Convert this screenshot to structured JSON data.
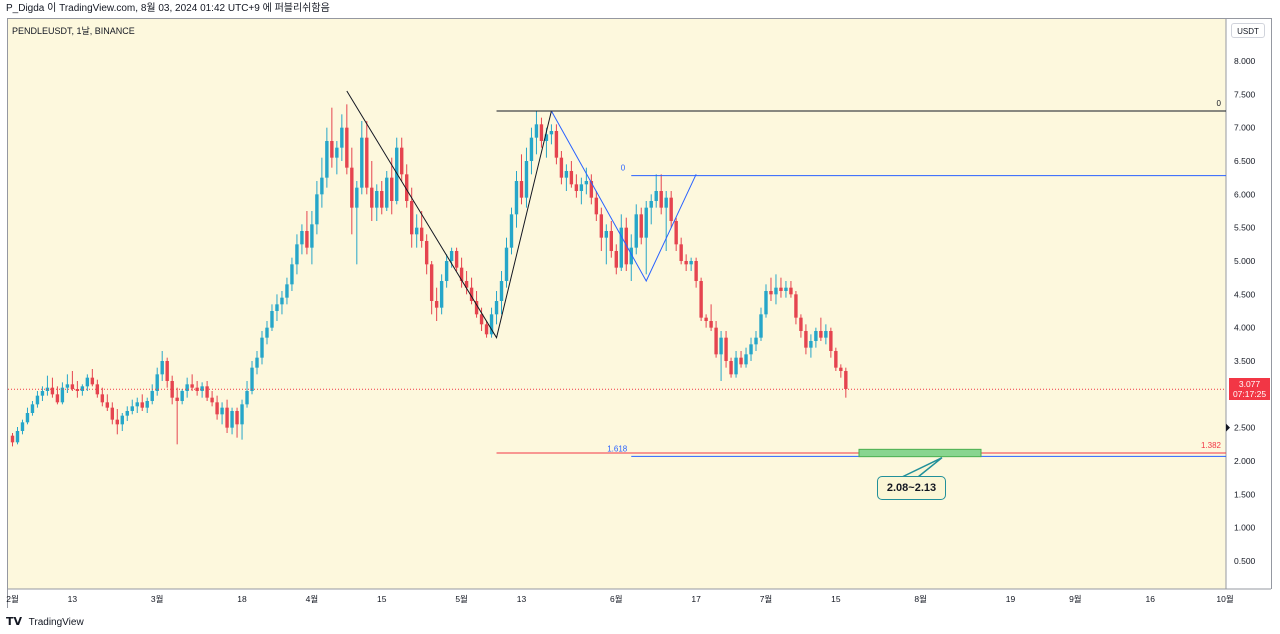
{
  "header": {
    "text": "P_Digda 이 TradingView.com, 8월 03, 2024 01:42 UTC+9 에 퍼블리쉬함음"
  },
  "chart_meta": {
    "symbol_label": "PENDLEUSDT, 1날, BINANCE",
    "currency": "USDT"
  },
  "footer": {
    "logo_text": "𝗧𝗩",
    "brand": "TradingView"
  },
  "colors": {
    "background": "#fdf8dd",
    "up": "#26a6c9",
    "down": "#e5444f",
    "accent_red": "#f23645",
    "blue_line": "#2962ff",
    "teal": "#22909a",
    "zone": "#89d58f"
  },
  "chart_data": {
    "type": "candlestick",
    "title": "PENDLEUSDT, 1날, BINANCE",
    "ylabel": "USDT",
    "ylim": [
      0.08,
      8.63
    ],
    "y_ticks": [
      0.5,
      1.0,
      1.5,
      2.0,
      2.5,
      3.0,
      3.5,
      4.0,
      4.5,
      5.0,
      5.5,
      6.0,
      6.5,
      7.0,
      7.5,
      8.0
    ],
    "y_tick_labels": [
      "0.500",
      "1.000",
      "1.500",
      "2.000",
      "2.500",
      "",
      "3.500",
      "4.000",
      "4.500",
      "5.000",
      "5.500",
      "6.000",
      "6.500",
      "7.000",
      "7.500",
      "8.000"
    ],
    "x_ticks": [
      {
        "label": "2월",
        "day": 0
      },
      {
        "label": "13",
        "day": 12
      },
      {
        "label": "3월",
        "day": 29
      },
      {
        "label": "18",
        "day": 46
      },
      {
        "label": "4월",
        "day": 60
      },
      {
        "label": "15",
        "day": 74
      },
      {
        "label": "5월",
        "day": 90
      },
      {
        "label": "13",
        "day": 102
      },
      {
        "label": "6월",
        "day": 121
      },
      {
        "label": "17",
        "day": 137
      },
      {
        "label": "7월",
        "day": 151
      },
      {
        "label": "15",
        "day": 165
      },
      {
        "label": "8월",
        "day": 182
      },
      {
        "label": "19",
        "day": 200
      },
      {
        "label": "9월",
        "day": 213
      },
      {
        "label": "16",
        "day": 228
      },
      {
        "label": "10월",
        "day": 243
      }
    ],
    "current_price": 3.077,
    "current_price_label": "3.077",
    "countdown": "07:17:25",
    "series": [
      {
        "name": "PENDLEUSDT",
        "data": [
          [
            2.38,
            2.42,
            2.22,
            2.28
          ],
          [
            2.28,
            2.51,
            2.25,
            2.45
          ],
          [
            2.45,
            2.62,
            2.4,
            2.58
          ],
          [
            2.58,
            2.8,
            2.55,
            2.72
          ],
          [
            2.72,
            2.9,
            2.68,
            2.85
          ],
          [
            2.85,
            3.05,
            2.8,
            2.98
          ],
          [
            2.98,
            3.12,
            2.9,
            3.05
          ],
          [
            3.05,
            3.28,
            2.98,
            3.1
          ],
          [
            3.1,
            3.25,
            2.95,
            3.0
          ],
          [
            3.0,
            3.12,
            2.85,
            2.88
          ],
          [
            2.88,
            3.18,
            2.85,
            3.1
          ],
          [
            3.1,
            3.3,
            3.02,
            3.15
          ],
          [
            3.15,
            3.35,
            3.05,
            3.08
          ],
          [
            3.08,
            3.2,
            2.95,
            3.05
          ],
          [
            3.05,
            3.15,
            2.98,
            3.12
          ],
          [
            3.12,
            3.3,
            3.05,
            3.25
          ],
          [
            3.25,
            3.38,
            3.12,
            3.15
          ],
          [
            3.15,
            3.22,
            2.95,
            3.0
          ],
          [
            3.0,
            3.1,
            2.82,
            2.88
          ],
          [
            2.88,
            3.0,
            2.75,
            2.8
          ],
          [
            2.8,
            2.88,
            2.55,
            2.62
          ],
          [
            2.62,
            2.78,
            2.4,
            2.55
          ],
          [
            2.55,
            2.72,
            2.45,
            2.68
          ],
          [
            2.68,
            2.82,
            2.6,
            2.75
          ],
          [
            2.75,
            2.92,
            2.7,
            2.82
          ],
          [
            2.82,
            2.95,
            2.72,
            2.88
          ],
          [
            2.88,
            3.0,
            2.75,
            2.8
          ],
          [
            2.8,
            2.95,
            2.72,
            2.9
          ],
          [
            2.9,
            3.15,
            2.85,
            3.05
          ],
          [
            3.05,
            3.4,
            2.98,
            3.3
          ],
          [
            3.3,
            3.65,
            3.2,
            3.5
          ],
          [
            3.5,
            3.55,
            3.1,
            3.2
          ],
          [
            3.2,
            3.28,
            2.85,
            2.95
          ],
          [
            2.95,
            3.1,
            2.25,
            2.9
          ],
          [
            2.9,
            3.08,
            2.85,
            3.05
          ],
          [
            3.05,
            3.25,
            2.95,
            3.15
          ],
          [
            3.15,
            3.3,
            3.05,
            3.1
          ],
          [
            3.1,
            3.2,
            2.98,
            3.05
          ],
          [
            3.05,
            3.18,
            2.95,
            3.12
          ],
          [
            3.12,
            3.2,
            2.9,
            2.95
          ],
          [
            2.95,
            3.05,
            2.82,
            2.88
          ],
          [
            2.88,
            2.98,
            2.62,
            2.7
          ],
          [
            2.7,
            2.88,
            2.55,
            2.8
          ],
          [
            2.8,
            2.92,
            2.42,
            2.5
          ],
          [
            2.5,
            2.8,
            2.4,
            2.75
          ],
          [
            2.75,
            2.8,
            2.35,
            2.55
          ],
          [
            2.55,
            2.92,
            2.32,
            2.85
          ],
          [
            2.85,
            3.2,
            2.8,
            3.05
          ],
          [
            3.05,
            3.5,
            3.0,
            3.4
          ],
          [
            3.4,
            3.65,
            3.3,
            3.55
          ],
          [
            3.55,
            3.95,
            3.45,
            3.85
          ],
          [
            3.85,
            4.1,
            3.75,
            4.0
          ],
          [
            4.0,
            4.35,
            3.95,
            4.25
          ],
          [
            4.25,
            4.5,
            4.1,
            4.35
          ],
          [
            4.35,
            4.55,
            4.2,
            4.45
          ],
          [
            4.45,
            4.75,
            4.35,
            4.65
          ],
          [
            4.65,
            5.05,
            4.55,
            4.95
          ],
          [
            4.95,
            5.4,
            4.8,
            5.25
          ],
          [
            5.25,
            5.55,
            5.1,
            5.45
          ],
          [
            5.45,
            5.75,
            5.1,
            5.2
          ],
          [
            5.2,
            5.75,
            4.95,
            5.55
          ],
          [
            5.55,
            6.2,
            5.4,
            6.0
          ],
          [
            6.0,
            6.55,
            5.8,
            6.25
          ],
          [
            6.25,
            7.0,
            6.1,
            6.8
          ],
          [
            6.8,
            7.3,
            6.4,
            6.55
          ],
          [
            6.55,
            6.8,
            6.3,
            6.7
          ],
          [
            6.7,
            7.2,
            6.5,
            7.0
          ],
          [
            7.0,
            7.35,
            6.3,
            6.4
          ],
          [
            6.4,
            6.7,
            5.4,
            5.8
          ],
          [
            5.8,
            6.2,
            4.95,
            6.1
          ],
          [
            6.1,
            7.1,
            6.0,
            6.85
          ],
          [
            6.85,
            7.1,
            6.0,
            6.1
          ],
          [
            6.1,
            6.5,
            5.6,
            5.8
          ],
          [
            5.8,
            6.15,
            5.6,
            6.05
          ],
          [
            6.05,
            6.2,
            5.7,
            5.8
          ],
          [
            5.8,
            6.35,
            5.75,
            6.25
          ],
          [
            6.25,
            6.55,
            5.7,
            5.9
          ],
          [
            5.9,
            6.85,
            5.85,
            6.7
          ],
          [
            6.7,
            6.85,
            6.2,
            6.3
          ],
          [
            6.3,
            6.45,
            5.8,
            5.9
          ],
          [
            5.9,
            6.1,
            5.2,
            5.4
          ],
          [
            5.4,
            5.7,
            5.2,
            5.5
          ],
          [
            5.5,
            5.75,
            5.2,
            5.3
          ],
          [
            5.3,
            5.4,
            4.8,
            4.95
          ],
          [
            4.95,
            5.0,
            4.2,
            4.4
          ],
          [
            4.4,
            4.6,
            4.1,
            4.3
          ],
          [
            4.3,
            4.8,
            4.2,
            4.7
          ],
          [
            4.7,
            5.1,
            4.6,
            5.0
          ],
          [
            5.0,
            5.2,
            4.9,
            5.15
          ],
          [
            5.15,
            5.2,
            4.85,
            4.9
          ],
          [
            4.9,
            5.05,
            4.6,
            4.7
          ],
          [
            4.7,
            4.85,
            4.5,
            4.6
          ],
          [
            4.6,
            4.75,
            4.35,
            4.4
          ],
          [
            4.4,
            4.55,
            4.15,
            4.2
          ],
          [
            4.2,
            4.3,
            3.95,
            4.05
          ],
          [
            4.05,
            4.1,
            3.85,
            3.9
          ],
          [
            3.9,
            4.3,
            3.85,
            4.2
          ],
          [
            4.2,
            4.55,
            4.05,
            4.4
          ],
          [
            4.4,
            4.85,
            4.2,
            4.7
          ],
          [
            4.7,
            5.35,
            4.6,
            5.2
          ],
          [
            5.2,
            5.8,
            5.1,
            5.7
          ],
          [
            5.7,
            6.35,
            5.5,
            6.2
          ],
          [
            6.2,
            6.6,
            5.85,
            5.95
          ],
          [
            5.95,
            6.7,
            5.8,
            6.5
          ],
          [
            6.5,
            7.0,
            6.3,
            6.85
          ],
          [
            6.85,
            7.25,
            6.6,
            7.05
          ],
          [
            7.05,
            7.15,
            6.7,
            6.8
          ],
          [
            6.8,
            7.0,
            6.55,
            6.9
          ],
          [
            6.9,
            7.05,
            6.75,
            6.95
          ],
          [
            6.95,
            7.05,
            6.45,
            6.55
          ],
          [
            6.55,
            6.65,
            6.15,
            6.25
          ],
          [
            6.25,
            6.45,
            6.05,
            6.35
          ],
          [
            6.35,
            6.5,
            6.1,
            6.15
          ],
          [
            6.15,
            6.3,
            5.95,
            6.05
          ],
          [
            6.05,
            6.25,
            5.85,
            6.15
          ],
          [
            6.15,
            6.4,
            6.0,
            6.2
          ],
          [
            6.2,
            6.3,
            5.85,
            5.95
          ],
          [
            5.95,
            6.05,
            5.6,
            5.7
          ],
          [
            5.7,
            5.8,
            5.15,
            5.35
          ],
          [
            5.35,
            5.55,
            4.95,
            5.45
          ],
          [
            5.45,
            5.6,
            5.05,
            5.15
          ],
          [
            5.15,
            5.25,
            4.8,
            4.9
          ],
          [
            4.9,
            5.7,
            4.85,
            5.5
          ],
          [
            5.5,
            5.65,
            4.85,
            4.95
          ],
          [
            4.95,
            5.4,
            4.7,
            5.2
          ],
          [
            5.2,
            5.85,
            5.1,
            5.7
          ],
          [
            5.7,
            5.8,
            5.25,
            5.35
          ],
          [
            5.35,
            5.9,
            4.8,
            5.8
          ],
          [
            5.8,
            6.0,
            5.55,
            5.9
          ],
          [
            5.9,
            6.3,
            5.8,
            6.05
          ],
          [
            6.05,
            6.3,
            5.7,
            5.8
          ],
          [
            5.8,
            6.05,
            5.15,
            5.95
          ],
          [
            5.95,
            6.05,
            5.5,
            5.6
          ],
          [
            5.6,
            5.65,
            5.15,
            5.25
          ],
          [
            5.25,
            5.35,
            4.95,
            5.0
          ],
          [
            5.0,
            5.1,
            4.85,
            4.95
          ],
          [
            4.95,
            5.05,
            4.85,
            5.0
          ],
          [
            5.0,
            5.05,
            4.6,
            4.7
          ],
          [
            4.7,
            4.75,
            4.1,
            4.15
          ],
          [
            4.15,
            4.2,
            4.0,
            4.1
          ],
          [
            4.1,
            4.35,
            3.95,
            4.0
          ],
          [
            4.0,
            4.1,
            3.55,
            3.6
          ],
          [
            3.6,
            3.95,
            3.2,
            3.85
          ],
          [
            3.85,
            3.95,
            3.4,
            3.5
          ],
          [
            3.5,
            3.55,
            3.25,
            3.3
          ],
          [
            3.3,
            3.65,
            3.25,
            3.55
          ],
          [
            3.55,
            3.65,
            3.4,
            3.45
          ],
          [
            3.45,
            3.7,
            3.4,
            3.6
          ],
          [
            3.6,
            3.85,
            3.5,
            3.75
          ],
          [
            3.75,
            3.95,
            3.65,
            3.85
          ],
          [
            3.85,
            4.3,
            3.8,
            4.2
          ],
          [
            4.2,
            4.65,
            4.15,
            4.55
          ],
          [
            4.55,
            4.75,
            4.4,
            4.5
          ],
          [
            4.5,
            4.8,
            4.35,
            4.6
          ],
          [
            4.6,
            4.75,
            4.45,
            4.55
          ],
          [
            4.55,
            4.7,
            4.45,
            4.6
          ],
          [
            4.6,
            4.7,
            4.45,
            4.5
          ],
          [
            4.5,
            4.55,
            4.05,
            4.15
          ],
          [
            4.15,
            4.2,
            3.85,
            3.95
          ],
          [
            3.95,
            4.05,
            3.6,
            3.7
          ],
          [
            3.7,
            3.9,
            3.55,
            3.8
          ],
          [
            3.8,
            4.0,
            3.7,
            3.95
          ],
          [
            3.95,
            4.15,
            3.8,
            3.85
          ],
          [
            3.85,
            4.05,
            3.75,
            3.95
          ],
          [
            3.95,
            4.0,
            3.55,
            3.65
          ],
          [
            3.65,
            3.7,
            3.35,
            3.4
          ],
          [
            3.4,
            3.45,
            3.25,
            3.35
          ],
          [
            3.35,
            3.4,
            2.95,
            3.08
          ]
        ]
      }
    ],
    "annotations": {
      "swing_points": [
        {
          "day": 0,
          "price": 2.35
        },
        {
          "day": 67,
          "price": 7.55
        },
        {
          "day": 97,
          "price": 3.85
        },
        {
          "day": 108,
          "price": 7.25
        },
        {
          "day": 127,
          "price": 4.7
        },
        {
          "day": 137,
          "price": 6.3
        }
      ],
      "fib_lines": [
        {
          "label": "0",
          "price": 7.25,
          "from_day": 97,
          "color": "#131722"
        },
        {
          "label": "0",
          "price": 6.28,
          "from_day": 124,
          "color": "#2962ff"
        },
        {
          "label": "1.618",
          "price": 2.07,
          "from_day": 124,
          "color": "#2962ff"
        },
        {
          "label": "1.382",
          "price": 2.12,
          "from_day": 97,
          "color": "#f23645"
        }
      ],
      "target_zone": {
        "low": 2.08,
        "high": 2.13,
        "label": "2.08~2.13"
      }
    }
  }
}
